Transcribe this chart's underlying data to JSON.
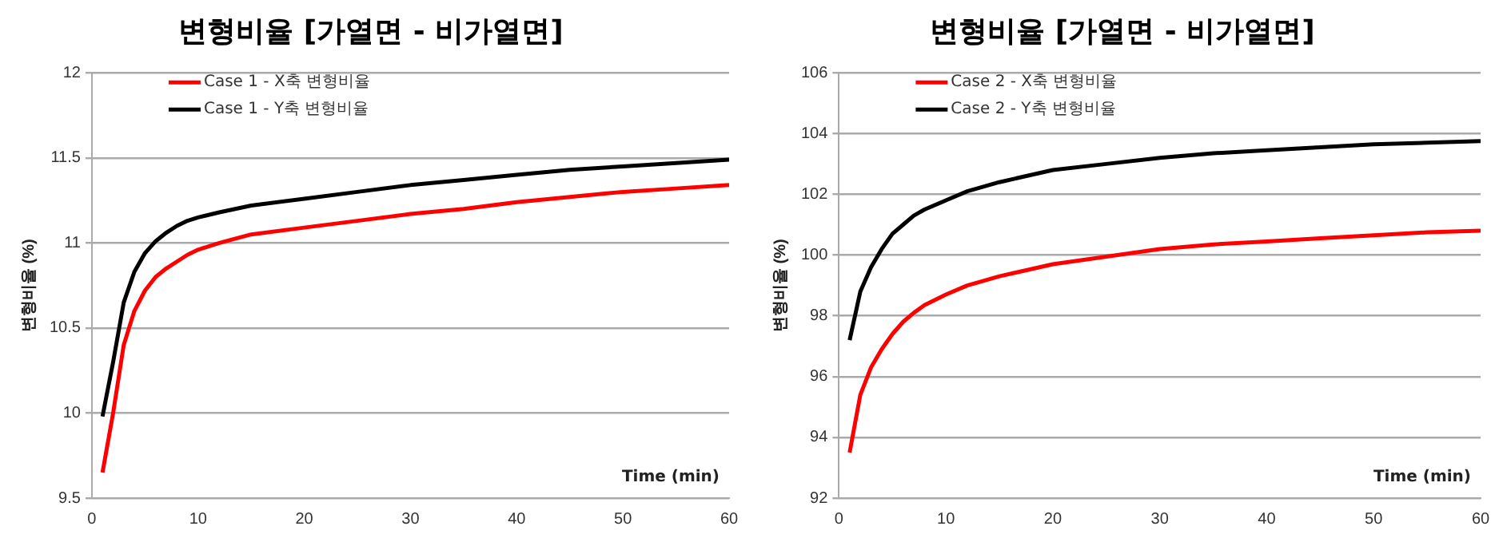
{
  "chart_data": [
    {
      "type": "line",
      "title": "변형비율 [가열면 - 비가열면]",
      "xlabel": "Time (min)",
      "ylabel": "변형비율 (%)",
      "x": [
        1,
        2,
        3,
        4,
        5,
        6,
        7,
        8,
        9,
        10,
        12,
        15,
        20,
        25,
        30,
        35,
        40,
        45,
        50,
        55,
        60
      ],
      "series": [
        {
          "name": "Case 1 - X축 변형비율",
          "color": "#ff0000",
          "values": [
            9.65,
            10.0,
            10.4,
            10.6,
            10.72,
            10.8,
            10.85,
            10.89,
            10.93,
            10.96,
            11.0,
            11.05,
            11.09,
            11.13,
            11.17,
            11.2,
            11.24,
            11.27,
            11.3,
            11.32,
            11.34
          ]
        },
        {
          "name": "Case 1 - Y축 변형비율",
          "color": "#000000",
          "values": [
            9.98,
            10.3,
            10.65,
            10.83,
            10.94,
            11.01,
            11.06,
            11.1,
            11.13,
            11.15,
            11.18,
            11.22,
            11.26,
            11.3,
            11.34,
            11.37,
            11.4,
            11.43,
            11.45,
            11.47,
            11.49
          ]
        }
      ],
      "xlim": [
        0,
        60
      ],
      "xticks": [
        0,
        10,
        20,
        30,
        40,
        50,
        60
      ],
      "ylim": [
        9.5,
        12
      ],
      "yticks": [
        9.5,
        10,
        10.5,
        11,
        11.5,
        12
      ],
      "grid": "y",
      "legend": "top left",
      "marker": "none",
      "line_style": "solid"
    },
    {
      "type": "line",
      "title": "변형비율 [가열면 - 비가열면]",
      "xlabel": "Time (min)",
      "ylabel": "변형비율 (%)",
      "x": [
        1,
        2,
        3,
        4,
        5,
        6,
        7,
        8,
        10,
        12,
        15,
        20,
        25,
        30,
        35,
        40,
        45,
        50,
        55,
        60
      ],
      "series": [
        {
          "name": "Case 2 - X축 변형비율",
          "color": "#ff0000",
          "values": [
            93.5,
            95.4,
            96.3,
            96.9,
            97.4,
            97.8,
            98.1,
            98.35,
            98.7,
            99.0,
            99.3,
            99.7,
            99.95,
            100.2,
            100.35,
            100.45,
            100.55,
            100.65,
            100.75,
            100.8
          ]
        },
        {
          "name": "Case 2 - Y축 변형비율",
          "color": "#000000",
          "values": [
            97.2,
            98.8,
            99.6,
            100.2,
            100.7,
            101.0,
            101.3,
            101.5,
            101.8,
            102.1,
            102.4,
            102.8,
            103.0,
            103.2,
            103.35,
            103.45,
            103.55,
            103.65,
            103.7,
            103.75
          ]
        }
      ],
      "xlim": [
        0,
        60
      ],
      "xticks": [
        0,
        10,
        20,
        30,
        40,
        50,
        60
      ],
      "ylim": [
        92,
        106
      ],
      "yticks": [
        92,
        94,
        96,
        98,
        100,
        102,
        104,
        106
      ],
      "grid": "y",
      "legend": "top left",
      "marker": "none",
      "line_style": "solid"
    }
  ]
}
